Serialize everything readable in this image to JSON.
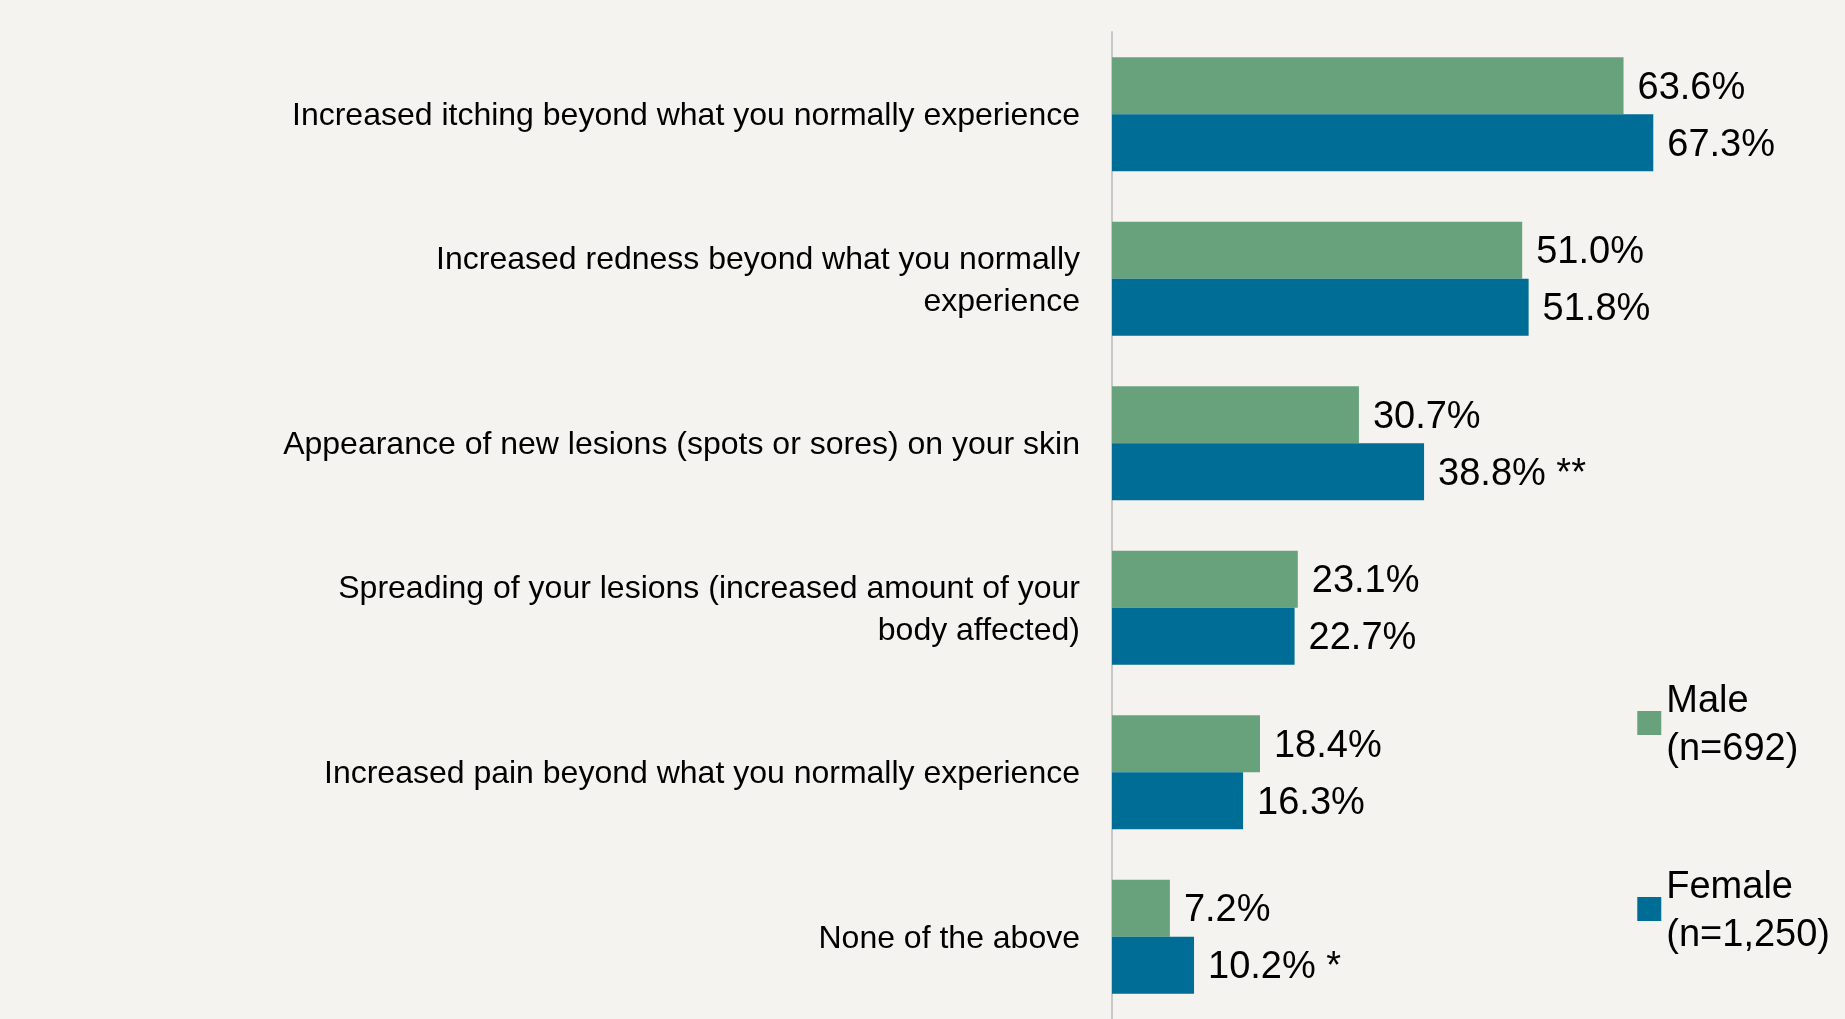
{
  "chart_data": {
    "type": "bar",
    "orientation": "horizontal",
    "legend": "right",
    "categories": [
      "Increased itching beyond what you normally experience",
      "Increased redness beyond what you normally\nexperience",
      "Appearance of new lesions (spots or sores) on your skin",
      "Spreading of your lesions (increased amount of your\nbody affected)",
      "Increased pain beyond what you normally experience",
      "None of the above"
    ],
    "series": [
      {
        "name": "Male\n(n=692)",
        "color": "#68a27c",
        "values": [
          63.6,
          51.0,
          30.7,
          23.1,
          18.4,
          7.2
        ],
        "value_labels": [
          "63.6%",
          "51.0%",
          "30.7%",
          "23.1%",
          "18.4%",
          "7.2%"
        ]
      },
      {
        "name": "Female\n(n=1,250)",
        "color": "#006d96",
        "values": [
          67.3,
          51.8,
          38.8,
          22.7,
          16.3,
          10.2
        ],
        "value_labels": [
          "67.3%",
          "51.8%",
          "38.8% **",
          "22.7%",
          "16.3%",
          "10.2% *"
        ]
      }
    ]
  }
}
